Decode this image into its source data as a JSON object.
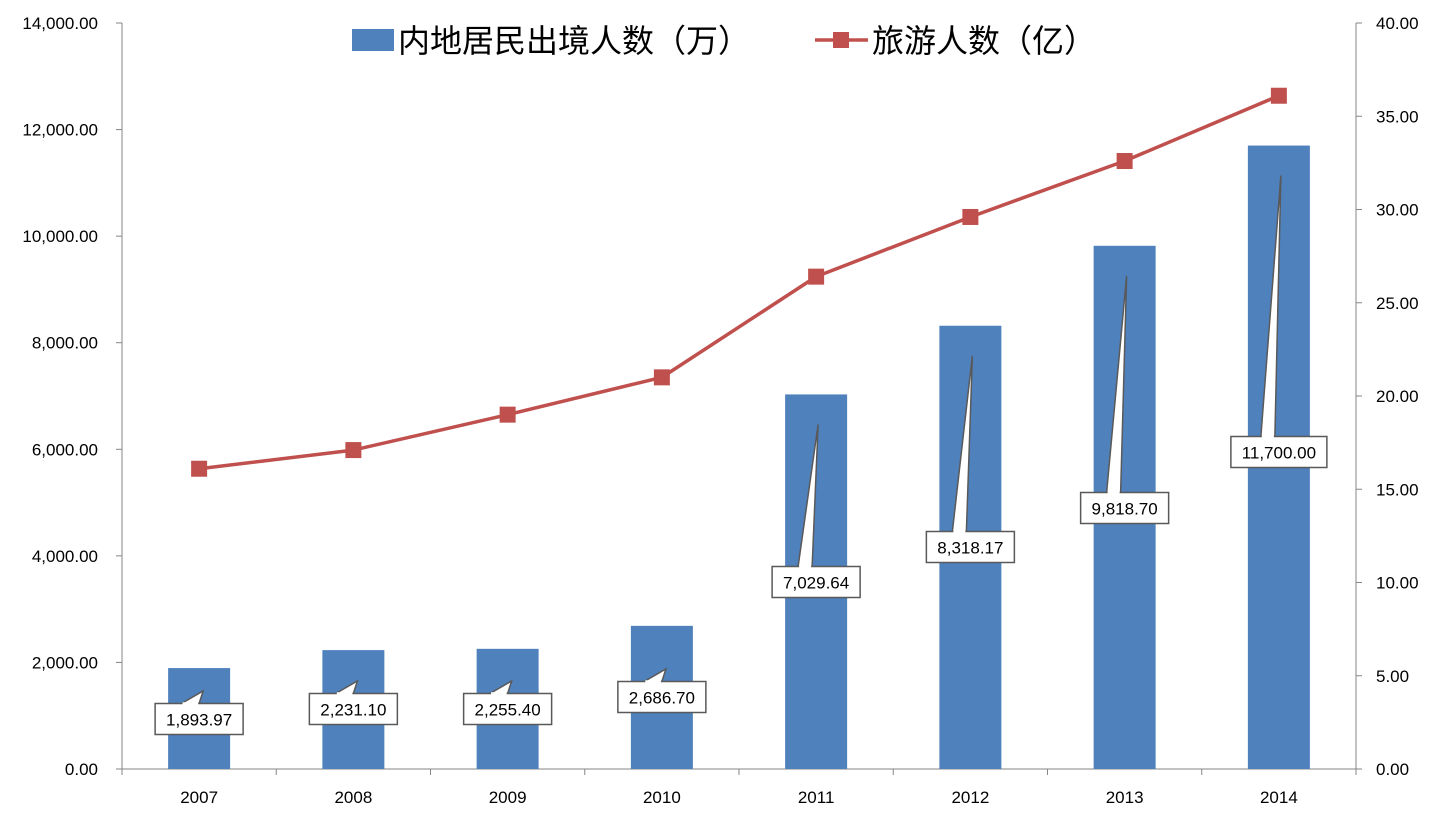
{
  "chart_data": {
    "type": "bar",
    "categories": [
      "2007",
      "2008",
      "2009",
      "2010",
      "2011",
      "2012",
      "2013",
      "2014"
    ],
    "series": [
      {
        "name": "内地居民出境人数（万）",
        "type": "bar",
        "axis": "left",
        "color": "#4F81BD",
        "values": [
          1893.97,
          2231.1,
          2255.4,
          2686.7,
          7029.64,
          8318.17,
          9818.7,
          11700.0
        ],
        "labels": [
          "1,893.97",
          "2,231.10",
          "2,255.40",
          "2,686.70",
          "7,029.64",
          "8,318.17",
          "9,818.70",
          "11,700.00"
        ]
      },
      {
        "name": "旅游人数（亿）",
        "type": "line",
        "axis": "right",
        "color": "#C0504D",
        "values": [
          16.1,
          17.1,
          19.0,
          21.0,
          26.4,
          29.6,
          32.6,
          36.1
        ]
      }
    ],
    "y_left": {
      "ylim": [
        0,
        14000
      ],
      "ticks": [
        "0.00",
        "2,000.00",
        "4,000.00",
        "6,000.00",
        "8,000.00",
        "10,000.00",
        "12,000.00",
        "14,000.00"
      ],
      "tick_values": [
        0,
        2000,
        4000,
        6000,
        8000,
        10000,
        12000,
        14000
      ]
    },
    "y_right": {
      "ylim": [
        0,
        40
      ],
      "ticks": [
        "0.00",
        "5.00",
        "10.00",
        "15.00",
        "20.00",
        "25.00",
        "30.00",
        "35.00",
        "40.00"
      ],
      "tick_values": [
        0,
        5,
        10,
        15,
        20,
        25,
        30,
        35,
        40
      ]
    },
    "legend_position": "top",
    "grid": false
  }
}
